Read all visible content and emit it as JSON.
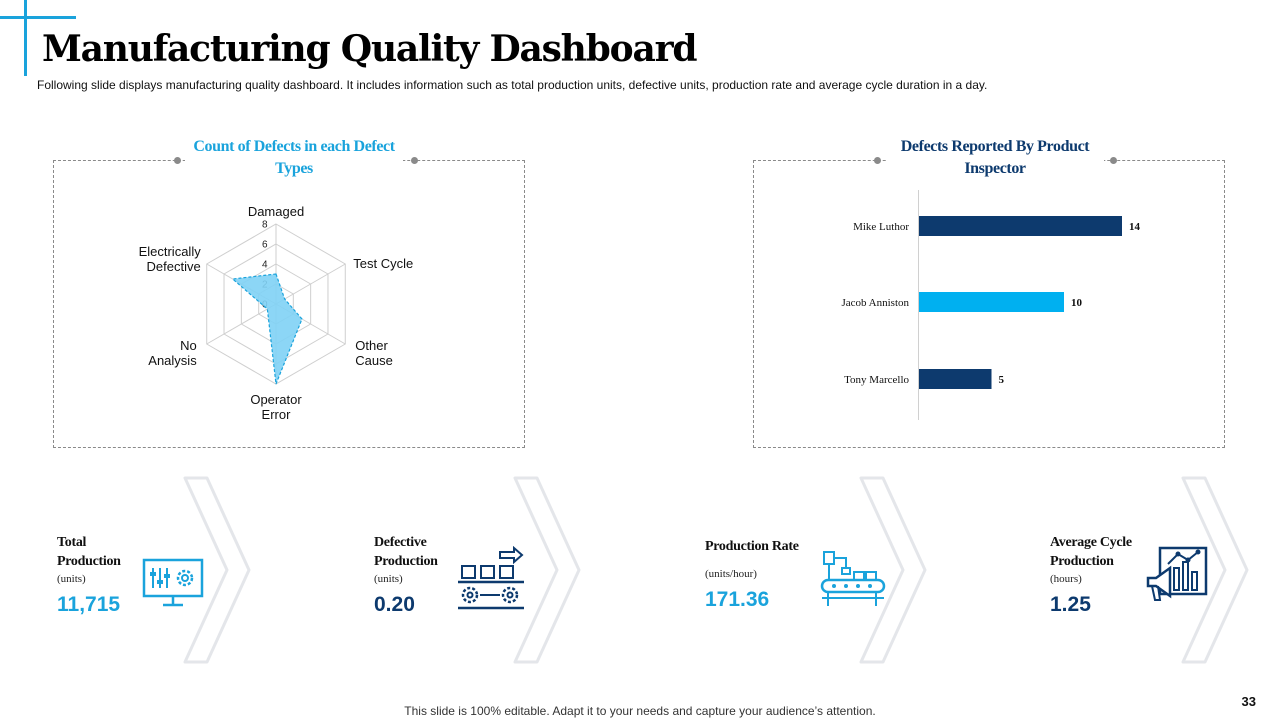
{
  "slide": {
    "title": "Manufacturing Quality Dashboard",
    "subtitle": "Following slide displays manufacturing quality dashboard. It includes information such as total production units, defective units, production rate and average cycle duration in a day.",
    "footer": "This slide is 100% editable. Adapt it to your needs and capture your audience’s attention.",
    "page_number": "33"
  },
  "colors": {
    "accent": "#1aa3dc",
    "navy": "#0d3a6e",
    "radar_fill": "#7fd1f5",
    "bar_light": "#00b0f0"
  },
  "panels": {
    "defect_types_title": "Count of Defects in each Defect Types",
    "inspector_title": "Defects Reported By Product Inspector"
  },
  "chart_data": [
    {
      "type": "radar",
      "title": "Count of Defects in each Defect Types",
      "categories": [
        "Damaged",
        "Test Cycle",
        "Other Cause",
        "Operator Error",
        "No Analysis",
        "Electrically Defective"
      ],
      "values": [
        3,
        1,
        3,
        8,
        1,
        5
      ],
      "radial_ticks": [
        "0",
        "2",
        "4",
        "6",
        "8"
      ],
      "rlim": [
        0,
        8
      ]
    },
    {
      "type": "bar",
      "orientation": "horizontal",
      "title": "Defects Reported By Product Inspector",
      "categories": [
        "Mike Luthor",
        "Jacob Anniston",
        "Tony Marcello"
      ],
      "values": [
        14,
        10,
        5
      ],
      "bar_colors": [
        "#0d3a6e",
        "#00b0f0",
        "#0d3a6e"
      ],
      "data_labels": [
        "14",
        "10",
        "5"
      ]
    }
  ],
  "kpis": [
    {
      "title": "Total Production",
      "unit": "(units)",
      "value": "11,715",
      "icon": "monitor-settings-icon",
      "value_color": "#1aa3dc"
    },
    {
      "title": "Defective Production",
      "unit": "(units)",
      "value": "0.20",
      "icon": "conveyor-boxes-icon",
      "value_color": "#0d3a6e"
    },
    {
      "title": "Production Rate",
      "unit": "(units/hour)",
      "value": "171.36",
      "icon": "robotic-arm-icon",
      "value_color": "#1aa3dc"
    },
    {
      "title": "Average Cycle Production",
      "unit": "(hours)",
      "value": "1.25",
      "icon": "megaphone-chart-icon",
      "value_color": "#0d3a6e"
    }
  ]
}
